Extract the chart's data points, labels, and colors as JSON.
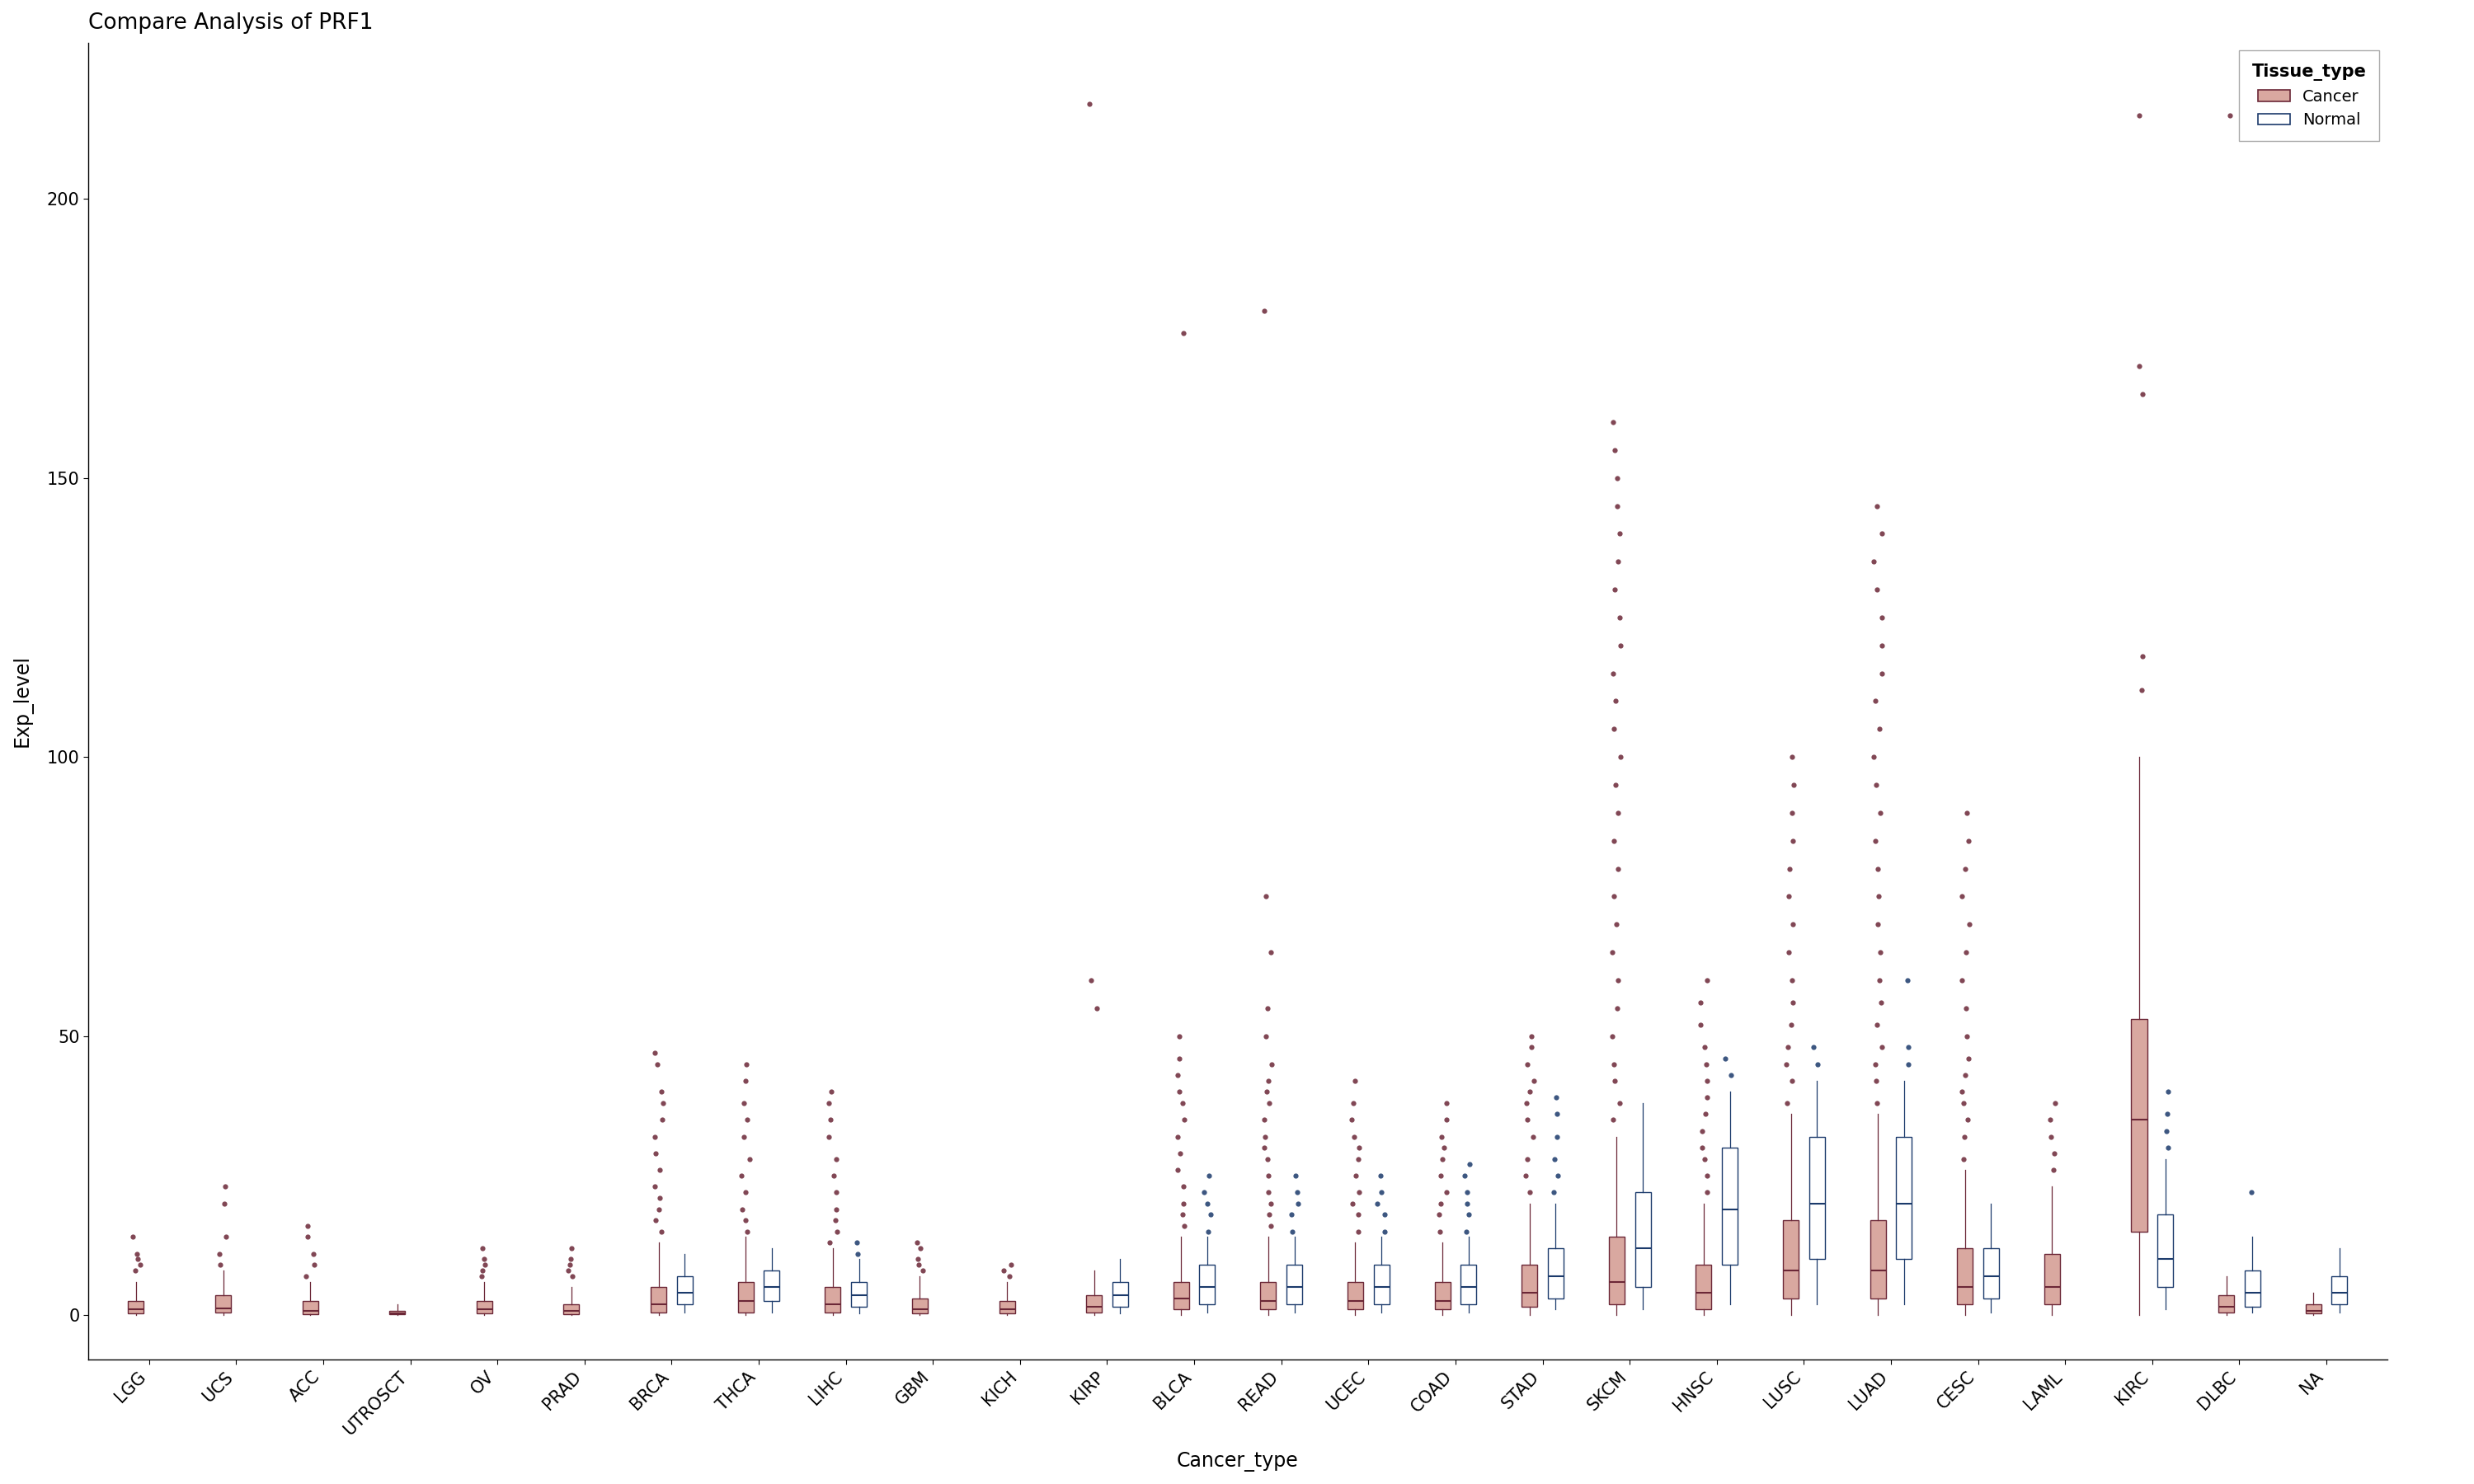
{
  "title": "Compare Analysis of PRF1",
  "xlabel": "Cancer_type",
  "ylabel": "Exp_level",
  "cancer_types": [
    "LGG",
    "UCS",
    "ACC",
    "UTROSCT",
    "OV",
    "PRAD",
    "BRCA",
    "THCA",
    "LIHC",
    "GBM",
    "KICH",
    "KIRP",
    "BLCA",
    "READ",
    "UCEC",
    "COAD",
    "STAD",
    "SKCM",
    "HNSC",
    "LUSC",
    "LUAD",
    "CESC",
    "LAML",
    "KIRC",
    "DLBC",
    "NA"
  ],
  "cancer_color": "#6B2737",
  "normal_color": "#1B3A6B",
  "cancer_fill": "#D9A8A0",
  "background": "#FFFFFF",
  "ylim": [
    -8,
    228
  ],
  "yticks": [
    0,
    50,
    100,
    150,
    200
  ],
  "cancer_data": {
    "LGG": {
      "q1": 0.3,
      "median": 1.0,
      "q3": 2.5,
      "whislo": 0.0,
      "whishi": 6.0,
      "fliers": [
        8,
        9,
        10,
        11,
        14
      ]
    },
    "UCS": {
      "q1": 0.4,
      "median": 1.2,
      "q3": 3.5,
      "whislo": 0.0,
      "whishi": 8.0,
      "fliers": [
        9,
        11,
        14,
        20,
        23
      ]
    },
    "ACC": {
      "q1": 0.2,
      "median": 0.8,
      "q3": 2.5,
      "whislo": 0.0,
      "whishi": 6.0,
      "fliers": [
        7,
        9,
        11,
        14,
        16
      ]
    },
    "UTROSCT": {
      "q1": 0.1,
      "median": 0.3,
      "q3": 0.8,
      "whislo": 0.0,
      "whishi": 2.0,
      "fliers": []
    },
    "OV": {
      "q1": 0.3,
      "median": 1.0,
      "q3": 2.5,
      "whislo": 0.0,
      "whishi": 6.0,
      "fliers": [
        7,
        8,
        9,
        10,
        12
      ]
    },
    "PRAD": {
      "q1": 0.2,
      "median": 0.8,
      "q3": 2.0,
      "whislo": 0.0,
      "whishi": 5.0,
      "fliers": [
        7,
        8,
        9,
        10,
        12
      ]
    },
    "BRCA": {
      "q1": 0.5,
      "median": 2.0,
      "q3": 5.0,
      "whislo": 0.0,
      "whishi": 13.0,
      "fliers": [
        15,
        17,
        19,
        21,
        23,
        26,
        29,
        32,
        35,
        38,
        40,
        45,
        47
      ]
    },
    "THCA": {
      "q1": 0.5,
      "median": 2.5,
      "q3": 6.0,
      "whislo": 0.0,
      "whishi": 14.0,
      "fliers": [
        15,
        17,
        19,
        22,
        25,
        28,
        32,
        35,
        38,
        42,
        45
      ]
    },
    "LIHC": {
      "q1": 0.5,
      "median": 2.0,
      "q3": 5.0,
      "whislo": 0.0,
      "whishi": 12.0,
      "fliers": [
        13,
        15,
        17,
        19,
        22,
        25,
        28,
        32,
        35,
        38,
        40
      ]
    },
    "GBM": {
      "q1": 0.3,
      "median": 1.0,
      "q3": 3.0,
      "whislo": 0.0,
      "whishi": 7.0,
      "fliers": [
        8,
        9,
        10,
        12,
        13
      ]
    },
    "KICH": {
      "q1": 0.3,
      "median": 1.0,
      "q3": 2.5,
      "whislo": 0.0,
      "whishi": 6.0,
      "fliers": [
        7,
        8,
        9
      ]
    },
    "KIRP": {
      "q1": 0.5,
      "median": 1.5,
      "q3": 3.5,
      "whislo": 0.0,
      "whishi": 8.0,
      "fliers": [
        55,
        60,
        217
      ]
    },
    "BLCA": {
      "q1": 1.0,
      "median": 3.0,
      "q3": 6.0,
      "whislo": 0.0,
      "whishi": 14.0,
      "fliers": [
        16,
        18,
        20,
        23,
        26,
        29,
        32,
        35,
        38,
        40,
        43,
        46,
        50,
        176
      ]
    },
    "READ": {
      "q1": 1.0,
      "median": 2.5,
      "q3": 6.0,
      "whislo": 0.0,
      "whishi": 14.0,
      "fliers": [
        16,
        18,
        20,
        22,
        25,
        28,
        30,
        32,
        35,
        38,
        40,
        42,
        45,
        50,
        55,
        65,
        75,
        180
      ]
    },
    "UCEC": {
      "q1": 1.0,
      "median": 2.5,
      "q3": 6.0,
      "whislo": 0.0,
      "whishi": 13.0,
      "fliers": [
        15,
        18,
        20,
        22,
        25,
        28,
        30,
        32,
        35,
        38,
        42
      ]
    },
    "COAD": {
      "q1": 1.0,
      "median": 2.5,
      "q3": 6.0,
      "whislo": 0.0,
      "whishi": 13.0,
      "fliers": [
        15,
        18,
        20,
        22,
        25,
        28,
        30,
        32,
        35,
        38
      ]
    },
    "STAD": {
      "q1": 1.5,
      "median": 4.0,
      "q3": 9.0,
      "whislo": 0.0,
      "whishi": 20.0,
      "fliers": [
        22,
        25,
        28,
        32,
        35,
        38,
        40,
        42,
        45,
        48,
        50
      ]
    },
    "SKCM": {
      "q1": 2.0,
      "median": 6.0,
      "q3": 14.0,
      "whislo": 0.0,
      "whishi": 32.0,
      "fliers": [
        35,
        38,
        42,
        45,
        50,
        55,
        60,
        65,
        70,
        75,
        80,
        85,
        90,
        95,
        100,
        105,
        110,
        115,
        120,
        125,
        130,
        135,
        140,
        145,
        150,
        155,
        160
      ]
    },
    "HNSC": {
      "q1": 1.0,
      "median": 4.0,
      "q3": 9.0,
      "whislo": 0.0,
      "whishi": 20.0,
      "fliers": [
        22,
        25,
        28,
        30,
        33,
        36,
        39,
        42,
        45,
        48,
        52,
        56,
        60
      ]
    },
    "LUSC": {
      "q1": 3.0,
      "median": 8.0,
      "q3": 17.0,
      "whislo": 0.0,
      "whishi": 36.0,
      "fliers": [
        38,
        42,
        45,
        48,
        52,
        56,
        60,
        65,
        70,
        75,
        80,
        85,
        90,
        95,
        100
      ]
    },
    "LUAD": {
      "q1": 3.0,
      "median": 8.0,
      "q3": 17.0,
      "whislo": 0.0,
      "whishi": 36.0,
      "fliers": [
        38,
        42,
        45,
        48,
        52,
        56,
        60,
        65,
        70,
        75,
        80,
        85,
        90,
        95,
        100,
        105,
        110,
        115,
        120,
        125,
        130,
        135,
        140,
        145
      ]
    },
    "CESC": {
      "q1": 2.0,
      "median": 5.0,
      "q3": 12.0,
      "whislo": 0.0,
      "whishi": 26.0,
      "fliers": [
        28,
        32,
        35,
        38,
        40,
        43,
        46,
        50,
        55,
        60,
        65,
        70,
        75,
        80,
        85,
        90
      ]
    },
    "LAML": {
      "q1": 2.0,
      "median": 5.0,
      "q3": 11.0,
      "whislo": 0.0,
      "whishi": 23.0,
      "fliers": [
        26,
        29,
        32,
        35,
        38
      ]
    },
    "KIRC": {
      "q1": 15.0,
      "median": 35.0,
      "q3": 53.0,
      "whislo": 0.0,
      "whishi": 100.0,
      "fliers": [
        112,
        118,
        165,
        170,
        215
      ]
    },
    "DLBC": {
      "q1": 0.5,
      "median": 1.5,
      "q3": 3.5,
      "whislo": 0.0,
      "whishi": 7.0,
      "fliers": [
        215
      ]
    },
    "NA": {
      "q1": 0.3,
      "median": 0.8,
      "q3": 2.0,
      "whislo": 0.0,
      "whishi": 4.0,
      "fliers": []
    }
  },
  "normal_data": {
    "BRCA": {
      "q1": 2.0,
      "median": 4.0,
      "q3": 7.0,
      "whislo": 0.5,
      "whishi": 11.0,
      "fliers": []
    },
    "THCA": {
      "q1": 2.5,
      "median": 5.0,
      "q3": 8.0,
      "whislo": 0.5,
      "whishi": 12.0,
      "fliers": []
    },
    "LIHC": {
      "q1": 1.5,
      "median": 3.5,
      "q3": 6.0,
      "whislo": 0.3,
      "whishi": 10.0,
      "fliers": [
        11,
        13
      ]
    },
    "KIRP": {
      "q1": 1.5,
      "median": 3.5,
      "q3": 6.0,
      "whislo": 0.3,
      "whishi": 10.0,
      "fliers": []
    },
    "BLCA": {
      "q1": 2.0,
      "median": 5.0,
      "q3": 9.0,
      "whislo": 0.5,
      "whishi": 14.0,
      "fliers": [
        15,
        18,
        20,
        22,
        25
      ]
    },
    "READ": {
      "q1": 2.0,
      "median": 5.0,
      "q3": 9.0,
      "whislo": 0.5,
      "whishi": 14.0,
      "fliers": [
        15,
        18,
        20,
        22,
        25
      ]
    },
    "UCEC": {
      "q1": 2.0,
      "median": 5.0,
      "q3": 9.0,
      "whislo": 0.5,
      "whishi": 14.0,
      "fliers": [
        15,
        18,
        20,
        22,
        25
      ]
    },
    "COAD": {
      "q1": 2.0,
      "median": 5.0,
      "q3": 9.0,
      "whislo": 0.5,
      "whishi": 14.0,
      "fliers": [
        15,
        18,
        20,
        22,
        25,
        27
      ]
    },
    "STAD": {
      "q1": 3.0,
      "median": 7.0,
      "q3": 12.0,
      "whislo": 1.0,
      "whishi": 20.0,
      "fliers": [
        22,
        25,
        28,
        32,
        36,
        39
      ]
    },
    "SKCM": {
      "q1": 5.0,
      "median": 12.0,
      "q3": 22.0,
      "whislo": 1.0,
      "whishi": 38.0,
      "fliers": []
    },
    "HNSC": {
      "q1": 9.0,
      "median": 19.0,
      "q3": 30.0,
      "whislo": 2.0,
      "whishi": 40.0,
      "fliers": [
        43,
        46
      ]
    },
    "LUSC": {
      "q1": 10.0,
      "median": 20.0,
      "q3": 32.0,
      "whislo": 2.0,
      "whishi": 42.0,
      "fliers": [
        45,
        48
      ]
    },
    "LUAD": {
      "q1": 10.0,
      "median": 20.0,
      "q3": 32.0,
      "whislo": 2.0,
      "whishi": 42.0,
      "fliers": [
        45,
        48,
        60
      ]
    },
    "CESC": {
      "q1": 3.0,
      "median": 7.0,
      "q3": 12.0,
      "whislo": 0.5,
      "whishi": 20.0,
      "fliers": []
    },
    "KIRC": {
      "q1": 5.0,
      "median": 10.0,
      "q3": 18.0,
      "whislo": 1.0,
      "whishi": 28.0,
      "fliers": [
        30,
        33,
        36,
        40
      ]
    },
    "DLBC": {
      "q1": 1.5,
      "median": 4.0,
      "q3": 8.0,
      "whislo": 0.5,
      "whishi": 14.0,
      "fliers": [
        22
      ]
    },
    "NA": {
      "q1": 2.0,
      "median": 4.0,
      "q3": 7.0,
      "whislo": 0.5,
      "whishi": 12.0,
      "fliers": []
    }
  }
}
